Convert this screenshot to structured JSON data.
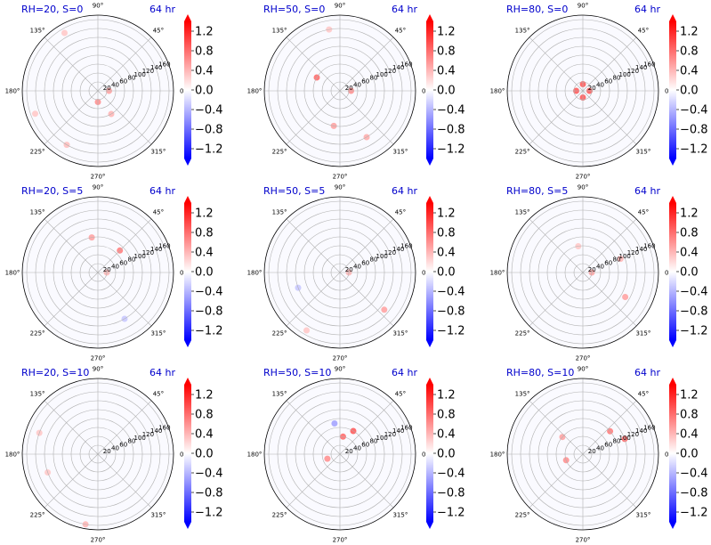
{
  "figure": {
    "title_color": "#0000cc",
    "colormap": "bwr",
    "colors": {
      "min": "#0000ff",
      "mid": "#ffffff",
      "max": "#ff0000",
      "grid": "#b0b0b0"
    }
  },
  "chart_data": [
    {
      "type": "heatmap",
      "projection": "polar",
      "title": "RH=20, S=0",
      "time_label": "64 hr",
      "theta_tick_labels": [
        "0°",
        "45°",
        "90°",
        "135°",
        "180°",
        "225°",
        "270°",
        "315°"
      ],
      "r_tick_labels": [
        "20",
        "40",
        "60",
        "80",
        "100",
        "120",
        "140",
        "160"
      ],
      "rlim": [
        0,
        170
      ],
      "colorbar": {
        "tick_labels": [
          "1.2",
          "0.8",
          "0.4",
          "0.0",
          "−0.4",
          "−0.8",
          "−1.2"
        ],
        "range": [
          -1.4,
          1.4
        ],
        "extend": "both"
      },
      "features": [
        {
          "theta": 270,
          "r": 25,
          "v": 0.6
        },
        {
          "theta": 0,
          "r": 25,
          "v": 0.5
        },
        {
          "theta": 300,
          "r": 60,
          "v": 0.4
        },
        {
          "theta": 120,
          "r": 150,
          "v": 0.3
        },
        {
          "theta": 200,
          "r": 150,
          "v": 0.3
        },
        {
          "theta": 240,
          "r": 140,
          "v": 0.35
        }
      ]
    },
    {
      "type": "heatmap",
      "projection": "polar",
      "title": "RH=50, S=0",
      "time_label": "64 hr",
      "theta_tick_labels": [
        "0°",
        "45°",
        "90°",
        "135°",
        "180°",
        "225°",
        "270°",
        "315°"
      ],
      "r_tick_labels": [
        "20",
        "40",
        "60",
        "80",
        "100",
        "120",
        "140",
        "160"
      ],
      "rlim": [
        0,
        170
      ],
      "colorbar": {
        "tick_labels": [
          "1.2",
          "0.8",
          "0.4",
          "0.0",
          "−0.4",
          "−0.8",
          "−1.2"
        ],
        "range": [
          -1.4,
          1.4
        ],
        "extend": "both"
      },
      "features": [
        {
          "theta": 0,
          "r": 25,
          "v": 0.6
        },
        {
          "theta": 150,
          "r": 60,
          "v": 0.8
        },
        {
          "theta": 260,
          "r": 80,
          "v": 0.5
        },
        {
          "theta": 300,
          "r": 120,
          "v": 0.45
        },
        {
          "theta": 100,
          "r": 140,
          "v": 0.3
        }
      ]
    },
    {
      "type": "heatmap",
      "projection": "polar",
      "title": "RH=80, S=0",
      "time_label": "64 hr",
      "theta_tick_labels": [
        "0°",
        "45°",
        "90°",
        "135°",
        "180°",
        "225°",
        "270°",
        "315°"
      ],
      "r_tick_labels": [
        "20",
        "40",
        "60",
        "80",
        "100",
        "120",
        "140",
        "160"
      ],
      "rlim": [
        0,
        170
      ],
      "colorbar": {
        "tick_labels": [
          "1.2",
          "0.8",
          "0.4",
          "0.0",
          "−0.4",
          "−0.8",
          "−1.2"
        ],
        "range": [
          -1.4,
          1.4
        ],
        "extend": "both"
      },
      "features": [
        {
          "theta": 0,
          "r": 15,
          "v": 0.9
        },
        {
          "theta": 90,
          "r": 15,
          "v": 0.9
        },
        {
          "theta": 180,
          "r": 15,
          "v": 0.9
        },
        {
          "theta": 270,
          "r": 15,
          "v": 0.9
        }
      ]
    },
    {
      "type": "heatmap",
      "projection": "polar",
      "title": "RH=20, S=5",
      "time_label": "64 hr",
      "theta_tick_labels": [
        "0°",
        "45°",
        "90°",
        "135°",
        "180°",
        "225°",
        "270°",
        "315°"
      ],
      "r_tick_labels": [
        "20",
        "40",
        "60",
        "80",
        "100",
        "120",
        "140",
        "160"
      ],
      "rlim": [
        0,
        170
      ],
      "colorbar": {
        "tick_labels": [
          "1.2",
          "0.8",
          "0.4",
          "0.0",
          "−0.4",
          "−0.8",
          "−1.2"
        ],
        "range": [
          -1.4,
          1.4
        ],
        "extend": "both"
      },
      "features": [
        {
          "theta": 0,
          "r": 20,
          "v": 0.4
        },
        {
          "theta": 45,
          "r": 70,
          "v": 0.7
        },
        {
          "theta": 100,
          "r": 80,
          "v": 0.5
        },
        {
          "theta": 300,
          "r": 120,
          "v": -0.3
        }
      ]
    },
    {
      "type": "heatmap",
      "projection": "polar",
      "title": "RH=50, S=5",
      "time_label": "64 hr",
      "theta_tick_labels": [
        "0°",
        "45°",
        "90°",
        "135°",
        "180°",
        "225°",
        "270°",
        "315°"
      ],
      "r_tick_labels": [
        "20",
        "40",
        "60",
        "80",
        "100",
        "120",
        "140",
        "160"
      ],
      "rlim": [
        0,
        170
      ],
      "colorbar": {
        "tick_labels": [
          "1.2",
          "0.8",
          "0.4",
          "0.0",
          "−0.4",
          "−0.8",
          "−1.2"
        ],
        "range": [
          -1.4,
          1.4
        ],
        "extend": "both"
      },
      "features": [
        {
          "theta": 0,
          "r": 20,
          "v": 0.4
        },
        {
          "theta": 320,
          "r": 130,
          "v": 0.5
        },
        {
          "theta": 200,
          "r": 100,
          "v": -0.3
        },
        {
          "theta": 240,
          "r": 150,
          "v": 0.3
        }
      ]
    },
    {
      "type": "heatmap",
      "projection": "polar",
      "title": "RH=80, S=5",
      "time_label": "64 hr",
      "theta_tick_labels": [
        "0°",
        "45°",
        "90°",
        "135°",
        "180°",
        "225°",
        "270°",
        "315°"
      ],
      "r_tick_labels": [
        "20",
        "40",
        "60",
        "80",
        "100",
        "120",
        "140",
        "160"
      ],
      "rlim": [
        0,
        170
      ],
      "colorbar": {
        "tick_labels": [
          "1.2",
          "0.8",
          "0.4",
          "0.0",
          "−0.4",
          "−0.8",
          "−1.2"
        ],
        "range": [
          -1.4,
          1.4
        ],
        "extend": "both"
      },
      "features": [
        {
          "theta": 0,
          "r": 20,
          "v": 0.5
        },
        {
          "theta": 330,
          "r": 110,
          "v": 0.5
        },
        {
          "theta": 20,
          "r": 90,
          "v": 0.4
        },
        {
          "theta": 100,
          "r": 60,
          "v": 0.3
        }
      ]
    },
    {
      "type": "heatmap",
      "projection": "polar",
      "title": "RH=20, S=10",
      "time_label": "64 hr",
      "theta_tick_labels": [
        "0°",
        "45°",
        "90°",
        "135°",
        "180°",
        "225°",
        "270°",
        "315°"
      ],
      "r_tick_labels": [
        "20",
        "40",
        "60",
        "80",
        "100",
        "120",
        "140",
        "160"
      ],
      "rlim": [
        0,
        170
      ],
      "colorbar": {
        "tick_labels": [
          "1.2",
          "0.8",
          "0.4",
          "0.0",
          "−0.4",
          "−0.8",
          "−1.2"
        ],
        "range": [
          -1.4,
          1.4
        ],
        "extend": "both"
      },
      "features": [
        {
          "theta": 260,
          "r": 160,
          "v": 0.4
        },
        {
          "theta": 160,
          "r": 140,
          "v": 0.3
        },
        {
          "theta": 200,
          "r": 120,
          "v": 0.3
        }
      ]
    },
    {
      "type": "heatmap",
      "projection": "polar",
      "title": "RH=50, S=10",
      "time_label": "64 hr",
      "theta_tick_labels": [
        "0°",
        "45°",
        "90°",
        "135°",
        "180°",
        "225°",
        "270°",
        "315°"
      ],
      "r_tick_labels": [
        "20",
        "40",
        "60",
        "80",
        "100",
        "120",
        "140",
        "160"
      ],
      "rlim": [
        0,
        170
      ],
      "colorbar": {
        "tick_labels": [
          "1.2",
          "0.8",
          "0.4",
          "0.0",
          "−0.4",
          "−0.8",
          "−1.2"
        ],
        "range": [
          -1.4,
          1.4
        ],
        "extend": "both"
      },
      "features": [
        {
          "theta": 60,
          "r": 60,
          "v": 0.9
        },
        {
          "theta": 80,
          "r": 40,
          "v": 0.8
        },
        {
          "theta": 100,
          "r": 70,
          "v": -0.5
        },
        {
          "theta": 200,
          "r": 30,
          "v": 0.6
        }
      ]
    },
    {
      "type": "heatmap",
      "projection": "polar",
      "title": "RH=80, S=10",
      "time_label": "64 hr",
      "theta_tick_labels": [
        "0°",
        "45°",
        "90°",
        "135°",
        "180°",
        "225°",
        "270°",
        "315°"
      ],
      "r_tick_labels": [
        "20",
        "40",
        "60",
        "80",
        "100",
        "120",
        "140",
        "160"
      ],
      "rlim": [
        0,
        170
      ],
      "colorbar": {
        "tick_labels": [
          "1.2",
          "0.8",
          "0.4",
          "0.0",
          "−0.4",
          "−0.8",
          "−1.2"
        ],
        "range": [
          -1.4,
          1.4
        ],
        "extend": "both"
      },
      "features": [
        {
          "theta": 20,
          "r": 100,
          "v": 0.8
        },
        {
          "theta": 40,
          "r": 80,
          "v": 0.7
        },
        {
          "theta": 140,
          "r": 60,
          "v": 0.5
        },
        {
          "theta": 200,
          "r": 40,
          "v": 0.6
        }
      ]
    }
  ]
}
